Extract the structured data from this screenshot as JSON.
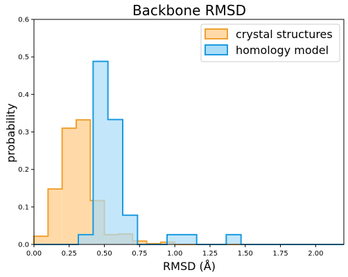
{
  "chart_data": {
    "type": "histogram",
    "title": "Backbone RMSD",
    "xlabel": "RMSD (Å)",
    "ylabel": "probability",
    "xlim": [
      0,
      2.2
    ],
    "ylim": [
      0,
      0.6
    ],
    "xticks": [
      "0.00",
      "0.25",
      "0.50",
      "0.75",
      "1.00",
      "1.25",
      "1.50",
      "1.75",
      "2.00"
    ],
    "yticks": [
      "0.0",
      "0.1",
      "0.2",
      "0.3",
      "0.4",
      "0.5",
      "0.6"
    ],
    "grid": false,
    "legend_position": "top-right",
    "series": [
      {
        "name": "crystal structures",
        "edge_color": "#f0a030",
        "fill_color": "#ffdaa8",
        "bin_edges": [
          0,
          0.1,
          0.2,
          0.3,
          0.4,
          0.5,
          0.6,
          0.7,
          0.8,
          0.9,
          1.0,
          1.1,
          1.2,
          1.3,
          1.4,
          1.5,
          1.6,
          1.7,
          1.8,
          1.9,
          2.0,
          2.1,
          2.2
        ],
        "values": [
          0.022,
          0.148,
          0.31,
          0.332,
          0.117,
          0.026,
          0.028,
          0.009,
          0.002,
          0.006,
          0.0,
          0.0,
          0.0,
          0.0,
          0.0,
          0.0,
          0.0,
          0.0,
          0.0,
          0.0,
          0.0,
          0.0
        ]
      },
      {
        "name": "homology model",
        "edge_color": "#1a9ae0",
        "fill_color": "#aadcf8",
        "bin_edges": [
          0.0,
          0.105,
          0.21,
          0.315,
          0.42,
          0.525,
          0.63,
          0.735,
          0.84,
          0.945,
          1.05,
          1.155,
          1.26,
          1.365,
          1.47,
          1.575,
          1.68,
          1.785,
          1.89,
          1.995,
          2.1,
          2.205
        ],
        "values": [
          0.0,
          0.0,
          0.0,
          0.026,
          0.488,
          0.333,
          0.078,
          0.0,
          0.0,
          0.026,
          0.026,
          0.0,
          0.0,
          0.026,
          0.0,
          0.0,
          0.0,
          0.0,
          0.0,
          0.0,
          0.0
        ]
      }
    ]
  }
}
